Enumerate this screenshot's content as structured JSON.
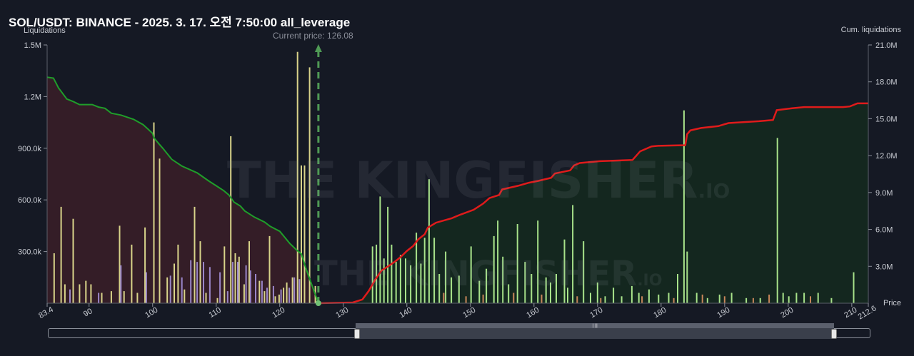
{
  "title": "SOL/USDT: BINANCE - 2025. 3. 17. 오전 7:50:00 all_leverage",
  "left_axis_title": "Liquidations",
  "right_axis_title": "Cum. liquidations",
  "x_axis_title": "Price",
  "current_price_label": "Current price: 126.08",
  "watermark": "THE KINGFISHER",
  "watermark_suffix": ".IO",
  "colors": {
    "background": "#151924",
    "short_side_fill": "#3a1f28",
    "long_side_fill": "#142a1f",
    "cum_left_line": "#1f9e2a",
    "cum_right_line": "#e01b1b",
    "current_price_line": "#4f9a55",
    "bar_yellow": "#d9d48a",
    "bar_purple": "#9a86c9",
    "bar_green": "#a8e38a",
    "bar_orange": "#c9865a"
  },
  "chart_data": {
    "type": "bar",
    "title": "SOL/USDT: BINANCE - 2025. 3. 17. 오전 7:50:00 all_leverage",
    "xlabel": "Price",
    "ylabel": "Liquidations",
    "y2label": "Cum. liquidations",
    "xlim": [
      83.4,
      212.6
    ],
    "ylim": [
      0,
      1500000
    ],
    "y2lim": [
      0,
      21000000
    ],
    "x_ticks": [
      83.4,
      90,
      100,
      110,
      120,
      130,
      140,
      150,
      160,
      170,
      180,
      190,
      200,
      210,
      212.6
    ],
    "x_tick_labels": [
      "83.4",
      "90",
      "100",
      "110",
      "120",
      "130",
      "140",
      "150",
      "160",
      "170",
      "180",
      "190",
      "200",
      "210",
      "212.6"
    ],
    "y_ticks": [
      300000,
      600000,
      900000,
      1200000,
      1500000
    ],
    "y_tick_labels": [
      "300.0k",
      "600.0k",
      "900.0k",
      "1.2M",
      "1.5M"
    ],
    "y2_ticks": [
      3000000,
      6000000,
      9000000,
      12000000,
      15000000,
      18000000,
      21000000
    ],
    "y2_tick_labels": [
      "3.0M",
      "6.0M",
      "9.0M",
      "12.0M",
      "15.0M",
      "18.0M",
      "21.0M"
    ],
    "current_price": 126.08,
    "grid": false,
    "series": [
      {
        "type": "bar",
        "color": "#d9d48a",
        "x": [
          84.5,
          85.6,
          86.2,
          87.5,
          88.5,
          89.5,
          90.3,
          92.0,
          93.5,
          94.8,
          95.5,
          96.7,
          97.6,
          98.8,
          100.2,
          101.1,
          102.3,
          103.4,
          104.0,
          105.0,
          106.6,
          107.5,
          108.4,
          110.2,
          111.3,
          112.3,
          113.0,
          113.6,
          114.4,
          115.2,
          116.8,
          117.6,
          118.4,
          119.3,
          119.9,
          120.6,
          121.1,
          122.0,
          122.8,
          123.4,
          123.9,
          124.7,
          125.6
        ],
        "values": [
          290000,
          560000,
          110000,
          490000,
          110000,
          130000,
          110000,
          60000,
          70000,
          450000,
          70000,
          340000,
          60000,
          440000,
          1050000,
          840000,
          150000,
          230000,
          340000,
          80000,
          560000,
          360000,
          60000,
          30000,
          330000,
          970000,
          290000,
          270000,
          110000,
          360000,
          130000,
          70000,
          390000,
          40000,
          50000,
          90000,
          120000,
          150000,
          1460000,
          800000,
          800000,
          1370000,
          100000
        ]
      },
      {
        "type": "bar",
        "color": "#9a86c9",
        "x": [
          87.0,
          91.5,
          95.0,
          99.0,
          102.8,
          104.6,
          106.0,
          107.0,
          108.0,
          109.0,
          110.6,
          111.8,
          112.6,
          113.4,
          114.7,
          115.4,
          116.2,
          117.2,
          118.0,
          119.0,
          120.2,
          121.5,
          122.3,
          123.1
        ],
        "values": [
          80000,
          60000,
          220000,
          180000,
          160000,
          150000,
          250000,
          240000,
          240000,
          210000,
          180000,
          70000,
          240000,
          240000,
          220000,
          190000,
          170000,
          130000,
          90000,
          100000,
          80000,
          90000,
          150000,
          140000
        ]
      },
      {
        "type": "bar",
        "color": "#a8e38a",
        "x": [
          134.6,
          135.2,
          135.8,
          136.4,
          137.0,
          137.6,
          138.3,
          139.0,
          139.8,
          140.6,
          141.5,
          142.2,
          142.8,
          143.5,
          144.3,
          145.1,
          146.1,
          147.0,
          148.2,
          150.1,
          151.4,
          152.5,
          153.7,
          154.3,
          155.1,
          156.0,
          157.4,
          158.6,
          159.6,
          160.6,
          161.9,
          162.6,
          163.5,
          164.8,
          165.3,
          166.1,
          167.8,
          168.9,
          170.0,
          171.2,
          172.5,
          173.8,
          175.4,
          176.5,
          178.1,
          179.6,
          181.2,
          182.6,
          183.6,
          184.1,
          185.6,
          187.3,
          189.2,
          191.1,
          193.4,
          195.6,
          198.3,
          199.2,
          200.1,
          201.3,
          202.5,
          204.7,
          206.8,
          210.3
        ],
        "values": [
          330000,
          340000,
          620000,
          260000,
          560000,
          340000,
          240000,
          280000,
          260000,
          220000,
          410000,
          230000,
          380000,
          720000,
          380000,
          170000,
          300000,
          150000,
          160000,
          330000,
          130000,
          200000,
          390000,
          480000,
          270000,
          110000,
          460000,
          240000,
          170000,
          480000,
          150000,
          120000,
          170000,
          370000,
          90000,
          570000,
          360000,
          60000,
          120000,
          40000,
          90000,
          40000,
          100000,
          60000,
          80000,
          50000,
          60000,
          170000,
          1120000,
          300000,
          60000,
          30000,
          50000,
          60000,
          30000,
          30000,
          960000,
          60000,
          40000,
          60000,
          60000,
          60000,
          30000,
          180000
        ]
      },
      {
        "type": "bar",
        "color": "#c9865a",
        "x": [
          145.8,
          149.3,
          152.0,
          156.8,
          161.2,
          166.8,
          170.5,
          177.0,
          182.0,
          186.5,
          190.0,
          194.5,
          197.0,
          203.5
        ],
        "values": [
          60000,
          40000,
          50000,
          60000,
          50000,
          40000,
          30000,
          40000,
          30000,
          50000,
          40000,
          30000,
          50000,
          40000
        ]
      },
      {
        "type": "line",
        "axis": "right",
        "color": "#1f9e2a",
        "x": [
          83.4,
          84.4,
          85.2,
          86.5,
          87.5,
          88.5,
          90.5,
          91.5,
          92.5,
          93.5,
          95.0,
          97.0,
          98.5,
          99.3,
          100.0,
          100.2,
          101.0,
          101.6,
          103.0,
          104.6,
          107.0,
          108.8,
          110.0,
          111.2,
          112.0,
          112.8,
          113.8,
          114.5,
          116.0,
          117.6,
          118.5,
          120.0,
          121.6,
          122.6,
          123.4,
          124.2,
          125.0,
          125.6,
          126.08
        ],
        "values": [
          18370000,
          18300000,
          17500000,
          16600000,
          16400000,
          16150000,
          16150000,
          15950000,
          15850000,
          15450000,
          15300000,
          14950000,
          14520000,
          14150000,
          13800000,
          13450000,
          12950000,
          12600000,
          11700000,
          11150000,
          10600000,
          9950000,
          9550000,
          9150000,
          8800000,
          8220000,
          7900000,
          7500000,
          7000000,
          6600000,
          6250000,
          5850000,
          4850000,
          4350000,
          4000000,
          2700000,
          1550000,
          700000,
          0
        ]
      },
      {
        "type": "line",
        "axis": "right",
        "color": "#e01b1b",
        "x": [
          126.08,
          131.5,
          133.0,
          134.0,
          135.0,
          136.0,
          137.2,
          138.3,
          139.0,
          140.0,
          141.0,
          141.8,
          142.8,
          143.3,
          144.6,
          147.0,
          148.4,
          150.5,
          152.0,
          153.0,
          154.5,
          155.0,
          157.5,
          159.2,
          160.7,
          162.7,
          163.3,
          165.7,
          166.3,
          167.2,
          170.4,
          173.2,
          175.5,
          176.7,
          178.5,
          179.5,
          183.8,
          184.1,
          184.6,
          186.3,
          189.0,
          190.6,
          195.4,
          197.6,
          198.2,
          200.6,
          202.5,
          206.2,
          207.3,
          208.6,
          209.7,
          210.9,
          212.6
        ],
        "values": [
          0,
          60000,
          300000,
          1000000,
          1900000,
          2650000,
          3050000,
          3450000,
          3750000,
          4250000,
          4650000,
          5200000,
          5600000,
          6150000,
          6550000,
          6900000,
          7200000,
          7600000,
          8100000,
          8550000,
          8800000,
          9250000,
          9550000,
          9800000,
          9950000,
          10200000,
          10550000,
          10800000,
          11200000,
          11400000,
          11550000,
          11600000,
          11650000,
          12350000,
          12750000,
          12800000,
          12850000,
          13750000,
          14050000,
          14250000,
          14400000,
          14650000,
          14800000,
          14900000,
          15700000,
          15850000,
          15950000,
          15950000,
          15950000,
          15950000,
          16000000,
          16250000,
          16250000
        ]
      }
    ]
  }
}
